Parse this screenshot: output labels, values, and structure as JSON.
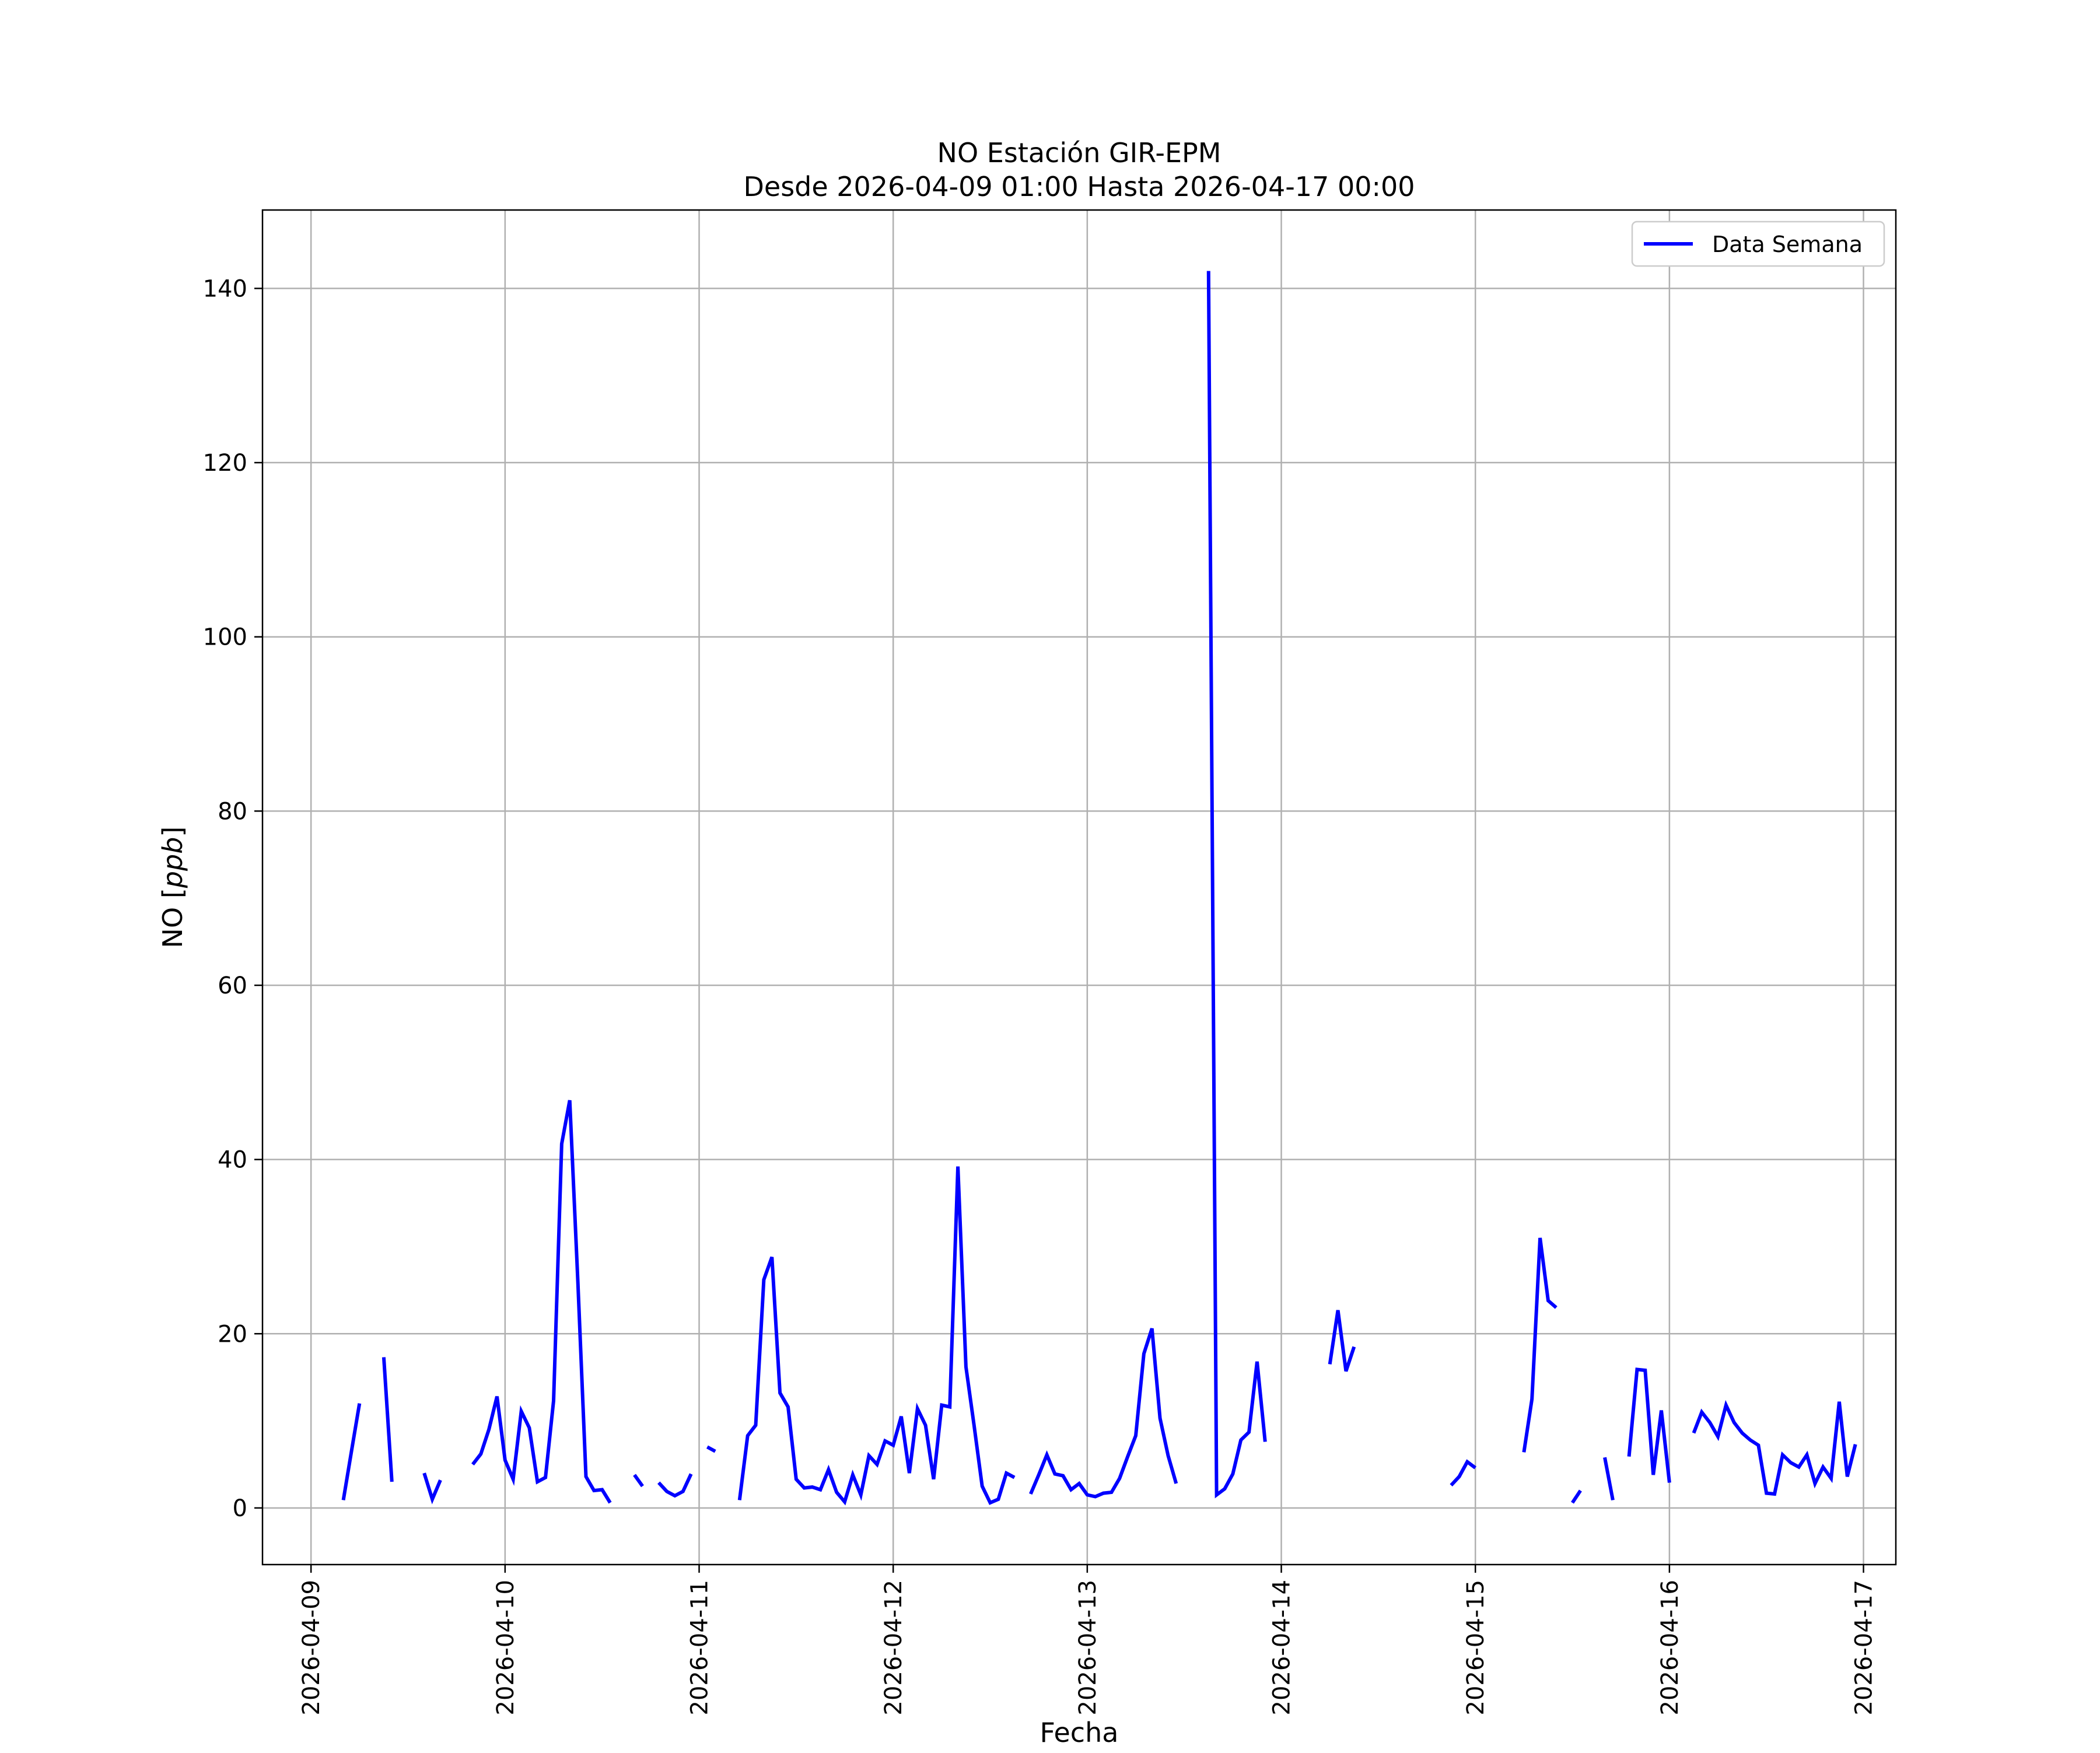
{
  "chart_data": {
    "type": "line",
    "title": "NO Estación GIR-EPM",
    "subtitle": "Desde 2026-04-09 01:00 Hasta 2026-04-17 00:00",
    "xlabel": "Fecha",
    "ylabel_text": "NO [",
    "ylabel_unit": "ppb",
    "ylabel_close": "]",
    "xlim": [
      "2026-04-08 18:00",
      "2026-04-17 04:00"
    ],
    "ylim": [
      -6.5,
      149
    ],
    "grid": true,
    "legend_position": "top-right",
    "x_ticks": [
      "2026-04-09",
      "2026-04-10",
      "2026-04-11",
      "2026-04-12",
      "2026-04-13",
      "2026-04-14",
      "2026-04-15",
      "2026-04-16",
      "2026-04-17"
    ],
    "y_ticks": [
      0,
      20,
      40,
      60,
      80,
      100,
      120,
      140
    ],
    "series": [
      {
        "name": "Data Semana",
        "color": "#0000ff",
        "segments": [
          [
            [
              "2026-04-09 04:00",
              0.9
            ],
            [
              "2026-04-09 05:00",
              6.5
            ],
            [
              "2026-04-09 06:00",
              12.0
            ]
          ],
          [
            [
              "2026-04-09 09:00",
              17.3
            ],
            [
              "2026-04-09 10:00",
              3.0
            ]
          ],
          [
            [
              "2026-04-09 14:00",
              4.0
            ],
            [
              "2026-04-09 15:00",
              1.0
            ],
            [
              "2026-04-09 16:00",
              3.2
            ]
          ],
          [
            [
              "2026-04-09 20:00",
              5.0
            ],
            [
              "2026-04-09 21:00",
              6.2
            ],
            [
              "2026-04-09 22:00",
              9.0
            ],
            [
              "2026-04-09 23:00",
              12.8
            ],
            [
              "2026-04-10 00:00",
              5.5
            ],
            [
              "2026-04-10 01:00",
              3.3
            ],
            [
              "2026-04-10 02:00",
              11.1
            ],
            [
              "2026-04-10 03:00",
              9.2
            ],
            [
              "2026-04-10 04:00",
              3.0
            ],
            [
              "2026-04-10 05:00",
              3.5
            ],
            [
              "2026-04-10 06:00",
              12.3
            ],
            [
              "2026-04-10 07:00",
              41.8
            ],
            [
              "2026-04-10 08:00",
              46.8
            ],
            [
              "2026-04-10 09:00",
              26.0
            ],
            [
              "2026-04-10 10:00",
              3.6
            ],
            [
              "2026-04-10 11:00",
              2.0
            ],
            [
              "2026-04-10 12:00",
              2.1
            ],
            [
              "2026-04-10 13:00",
              0.6
            ]
          ],
          [
            [
              "2026-04-10 16:00",
              3.8
            ],
            [
              "2026-04-10 17:00",
              2.5
            ]
          ],
          [
            [
              "2026-04-10 19:00",
              2.9
            ],
            [
              "2026-04-10 20:00",
              1.9
            ],
            [
              "2026-04-10 21:00",
              1.4
            ],
            [
              "2026-04-10 22:00",
              1.9
            ],
            [
              "2026-04-10 23:00",
              3.9
            ]
          ],
          [
            [
              "2026-04-11 01:00",
              7.0
            ],
            [
              "2026-04-11 02:00",
              6.5
            ]
          ],
          [
            [
              "2026-04-11 05:00",
              0.9
            ],
            [
              "2026-04-11 06:00",
              8.3
            ],
            [
              "2026-04-11 07:00",
              9.5
            ],
            [
              "2026-04-11 08:00",
              26.2
            ],
            [
              "2026-04-11 09:00",
              28.8
            ],
            [
              "2026-04-11 10:00",
              13.2
            ],
            [
              "2026-04-11 11:00",
              11.6
            ],
            [
              "2026-04-11 12:00",
              3.3
            ],
            [
              "2026-04-11 13:00",
              2.3
            ],
            [
              "2026-04-11 14:00",
              2.4
            ],
            [
              "2026-04-11 15:00",
              2.1
            ],
            [
              "2026-04-11 16:00",
              4.4
            ],
            [
              "2026-04-11 17:00",
              1.8
            ],
            [
              "2026-04-11 18:00",
              0.7
            ],
            [
              "2026-04-11 19:00",
              3.8
            ],
            [
              "2026-04-11 20:00",
              1.5
            ],
            [
              "2026-04-11 21:00",
              6.0
            ],
            [
              "2026-04-11 22:00",
              5.0
            ],
            [
              "2026-04-11 23:00",
              7.7
            ],
            [
              "2026-04-12 00:00",
              7.2
            ],
            [
              "2026-04-12 01:00",
              10.5
            ],
            [
              "2026-04-12 02:00",
              4.0
            ],
            [
              "2026-04-12 03:00",
              11.4
            ],
            [
              "2026-04-12 04:00",
              9.5
            ],
            [
              "2026-04-12 05:00",
              3.3
            ],
            [
              "2026-04-12 06:00",
              11.8
            ],
            [
              "2026-04-12 07:00",
              11.6
            ],
            [
              "2026-04-12 08:00",
              39.2
            ],
            [
              "2026-04-12 09:00",
              16.2
            ],
            [
              "2026-04-12 10:00",
              9.5
            ],
            [
              "2026-04-12 11:00",
              2.5
            ],
            [
              "2026-04-12 12:00",
              0.6
            ],
            [
              "2026-04-12 13:00",
              1.0
            ],
            [
              "2026-04-12 14:00",
              4.0
            ],
            [
              "2026-04-12 15:00",
              3.5
            ]
          ],
          [
            [
              "2026-04-12 17:00",
              1.6
            ],
            [
              "2026-04-12 18:00",
              3.8
            ],
            [
              "2026-04-12 19:00",
              6.1
            ],
            [
              "2026-04-12 20:00",
              3.9
            ],
            [
              "2026-04-12 21:00",
              3.7
            ],
            [
              "2026-04-12 22:00",
              2.1
            ],
            [
              "2026-04-12 23:00",
              2.8
            ],
            [
              "2026-04-13 00:00",
              1.5
            ],
            [
              "2026-04-13 01:00",
              1.3
            ],
            [
              "2026-04-13 02:00",
              1.7
            ],
            [
              "2026-04-13 03:00",
              1.8
            ],
            [
              "2026-04-13 04:00",
              3.4
            ],
            [
              "2026-04-13 05:00",
              5.9
            ],
            [
              "2026-04-13 06:00",
              8.3
            ],
            [
              "2026-04-13 07:00",
              17.7
            ],
            [
              "2026-04-13 08:00",
              20.6
            ],
            [
              "2026-04-13 09:00",
              10.3
            ],
            [
              "2026-04-13 10:00",
              6.0
            ],
            [
              "2026-04-13 11:00",
              2.8
            ]
          ],
          [
            [
              "2026-04-13 15:00",
              142.0
            ],
            [
              "2026-04-13 16:00",
              1.5
            ],
            [
              "2026-04-13 17:00",
              2.2
            ],
            [
              "2026-04-13 18:00",
              3.9
            ],
            [
              "2026-04-13 19:00",
              7.8
            ],
            [
              "2026-04-13 20:00",
              8.7
            ],
            [
              "2026-04-13 21:00",
              16.8
            ],
            [
              "2026-04-13 22:00",
              7.6
            ]
          ],
          [
            [
              "2026-04-14 06:00",
              16.5
            ],
            [
              "2026-04-14 07:00",
              22.7
            ],
            [
              "2026-04-14 08:00",
              15.7
            ],
            [
              "2026-04-14 09:00",
              18.5
            ]
          ],
          [
            [
              "2026-04-14 21:00",
              2.6
            ],
            [
              "2026-04-14 22:00",
              3.6
            ],
            [
              "2026-04-14 23:00",
              5.3
            ],
            [
              "2026-04-15 00:00",
              4.6
            ]
          ],
          [
            [
              "2026-04-15 06:00",
              6.4
            ],
            [
              "2026-04-15 07:00",
              12.5
            ],
            [
              "2026-04-15 08:00",
              31.0
            ],
            [
              "2026-04-15 09:00",
              23.8
            ],
            [
              "2026-04-15 10:00",
              23.0
            ]
          ],
          [
            [
              "2026-04-15 12:00",
              0.6
            ],
            [
              "2026-04-15 13:00",
              2.0
            ]
          ],
          [
            [
              "2026-04-15 16:00",
              5.8
            ],
            [
              "2026-04-15 17:00",
              0.9
            ]
          ],
          [
            [
              "2026-04-15 19:00",
              5.9
            ],
            [
              "2026-04-15 20:00",
              15.9
            ],
            [
              "2026-04-15 21:00",
              15.8
            ],
            [
              "2026-04-15 22:00",
              3.8
            ],
            [
              "2026-04-15 23:00",
              11.2
            ],
            [
              "2026-04-16 00:00",
              2.9
            ]
          ],
          [
            [
              "2026-04-16 03:00",
              8.6
            ],
            [
              "2026-04-16 04:00",
              11.0
            ],
            [
              "2026-04-16 05:00",
              9.8
            ],
            [
              "2026-04-16 06:00",
              8.2
            ],
            [
              "2026-04-16 07:00",
              11.8
            ],
            [
              "2026-04-16 08:00",
              9.8
            ],
            [
              "2026-04-16 09:00",
              8.6
            ],
            [
              "2026-04-16 10:00",
              7.8
            ],
            [
              "2026-04-16 11:00",
              7.2
            ],
            [
              "2026-04-16 12:00",
              1.7
            ],
            [
              "2026-04-16 13:00",
              1.6
            ],
            [
              "2026-04-16 14:00",
              6.1
            ],
            [
              "2026-04-16 15:00",
              5.2
            ],
            [
              "2026-04-16 16:00",
              4.7
            ],
            [
              "2026-04-16 17:00",
              6.1
            ],
            [
              "2026-04-16 18:00",
              2.8
            ],
            [
              "2026-04-16 19:00",
              4.7
            ],
            [
              "2026-04-16 20:00",
              3.4
            ],
            [
              "2026-04-16 21:00",
              12.2
            ],
            [
              "2026-04-16 22:00",
              3.6
            ],
            [
              "2026-04-16 23:00",
              7.3
            ]
          ]
        ]
      }
    ]
  }
}
